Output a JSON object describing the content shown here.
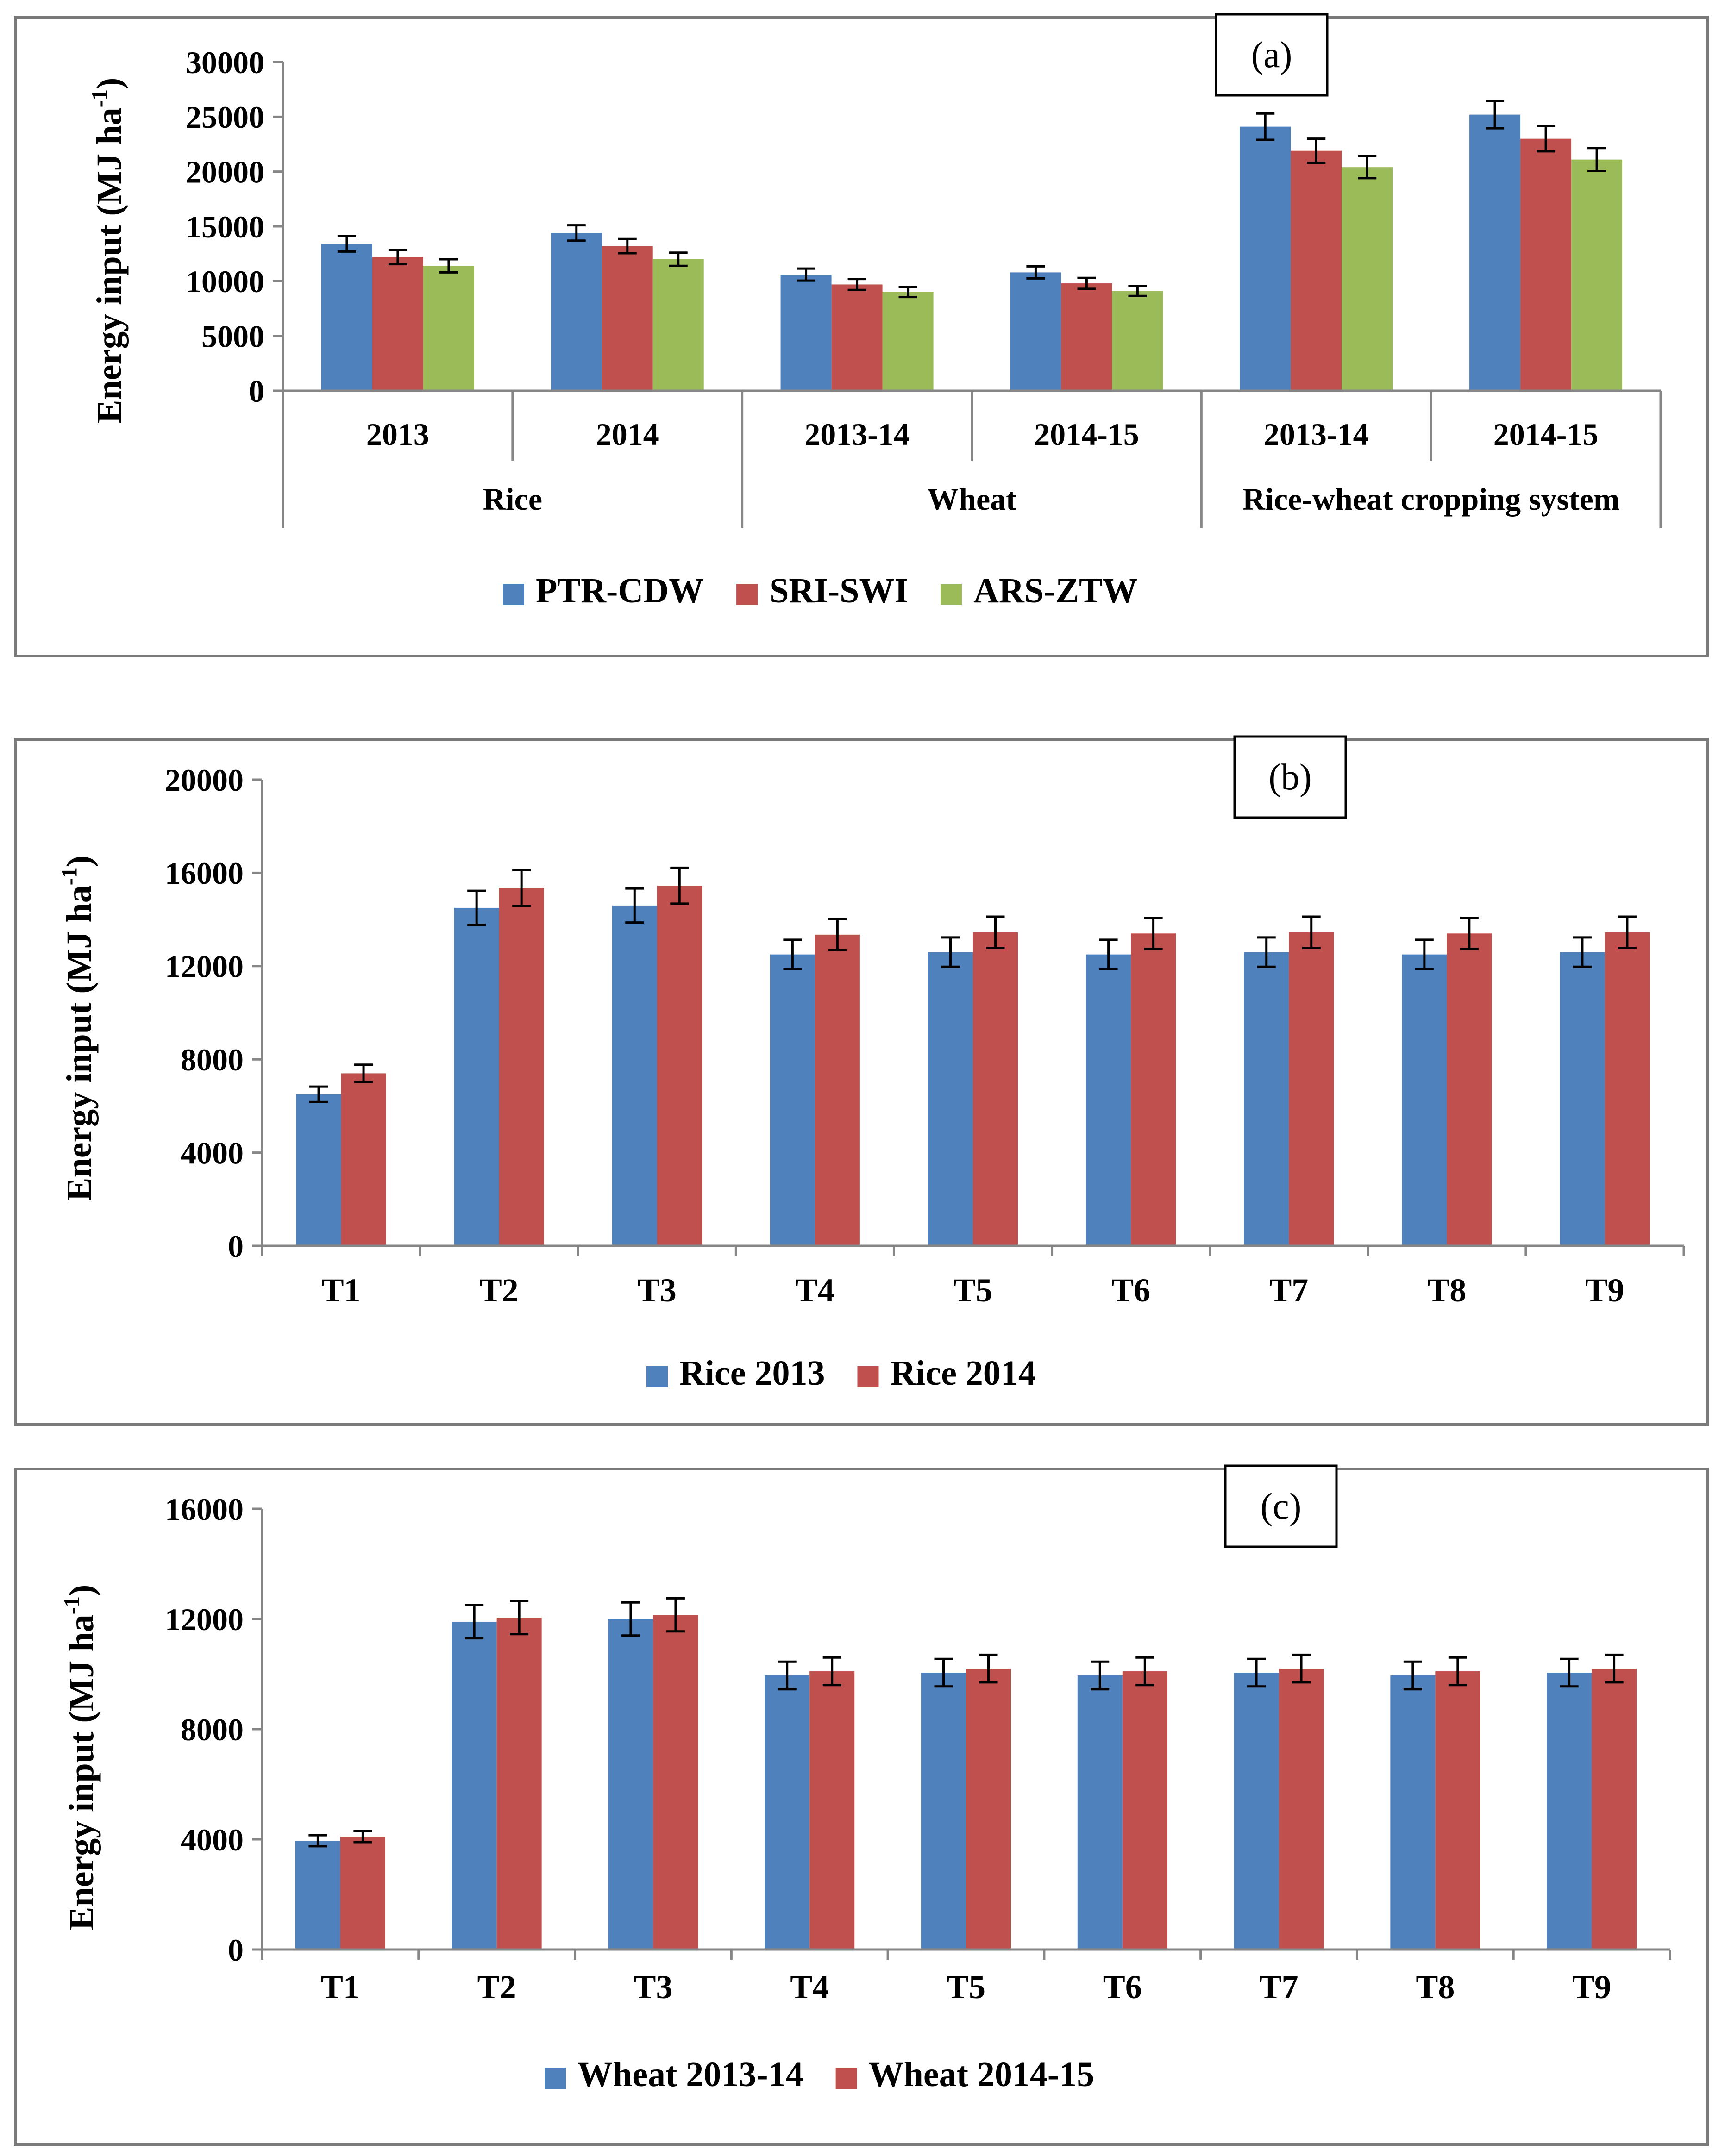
{
  "colors": {
    "blue": "#4f81bd",
    "red": "#c0504d",
    "green": "#9bbb59"
  },
  "chart_data": [
    {
      "id": "a",
      "type": "bar",
      "label": "(a)",
      "ylabel": "Energy input (MJ ha",
      "ylabel_sup": "-1",
      "ylabel_close": ")",
      "ylim": [
        0,
        30000
      ],
      "yticks": [
        "0",
        "5000",
        "10000",
        "15000",
        "20000",
        "25000",
        "30000"
      ],
      "categories": [
        "2013",
        "2014",
        "2013-14",
        "2014-15",
        "2013-14",
        "2014-15"
      ],
      "groups": [
        "Rice",
        "Wheat",
        "Rice-wheat cropping system"
      ],
      "series": [
        {
          "name": "PTR-CDW",
          "color": "#4f81bd",
          "values": [
            13400,
            14400,
            10600,
            10800,
            24100,
            25200
          ],
          "errors": [
            700,
            700,
            550,
            550,
            1200,
            1250
          ]
        },
        {
          "name": "SRI-SWI",
          "color": "#c0504d",
          "values": [
            12200,
            13200,
            9700,
            9800,
            21900,
            23000
          ],
          "errors": [
            650,
            650,
            500,
            500,
            1100,
            1150
          ]
        },
        {
          "name": "ARS-ZTW",
          "color": "#9bbb59",
          "values": [
            11400,
            12000,
            9000,
            9100,
            20400,
            21100
          ],
          "errors": [
            600,
            600,
            450,
            450,
            1000,
            1050
          ]
        }
      ]
    },
    {
      "id": "b",
      "type": "bar",
      "label": "(b)",
      "ylabel": "Energy input (MJ ha",
      "ylabel_sup": "-1",
      "ylabel_close": ")",
      "ylim": [
        0,
        20000
      ],
      "yticks": [
        "0",
        "4000",
        "8000",
        "12000",
        "16000",
        "20000"
      ],
      "categories": [
        "T1",
        "T2",
        "T3",
        "T4",
        "T5",
        "T6",
        "T7",
        "T8",
        "T9"
      ],
      "series": [
        {
          "name": "Rice 2013",
          "color": "#4f81bd",
          "values": [
            6500,
            14500,
            14600,
            12500,
            12600,
            12500,
            12600,
            12500,
            12600
          ],
          "errors": [
            330,
            730,
            730,
            630,
            630,
            630,
            630,
            630,
            630
          ]
        },
        {
          "name": "Rice 2014",
          "color": "#c0504d",
          "values": [
            7400,
            15350,
            15450,
            13350,
            13450,
            13400,
            13450,
            13400,
            13450
          ],
          "errors": [
            370,
            770,
            770,
            670,
            670,
            670,
            670,
            670,
            670
          ]
        }
      ]
    },
    {
      "id": "c",
      "type": "bar",
      "label": "(c)",
      "ylabel": "Energy input (MJ ha",
      "ylabel_sup": "-1",
      "ylabel_close": ")",
      "ylim": [
        0,
        16000
      ],
      "yticks": [
        "0",
        "4000",
        "8000",
        "12000",
        "16000"
      ],
      "categories": [
        "T1",
        "T2",
        "T3",
        "T4",
        "T5",
        "T6",
        "T7",
        "T8",
        "T9"
      ],
      "series": [
        {
          "name": "Wheat 2013-14",
          "color": "#4f81bd",
          "values": [
            3950,
            11900,
            12000,
            9950,
            10050,
            9950,
            10050,
            9950,
            10050
          ],
          "errors": [
            200,
            600,
            600,
            500,
            500,
            500,
            500,
            500,
            500
          ]
        },
        {
          "name": "Wheat 2014-15",
          "color": "#c0504d",
          "values": [
            4100,
            12050,
            12150,
            10100,
            10200,
            10100,
            10200,
            10100,
            10200
          ],
          "errors": [
            200,
            600,
            600,
            500,
            500,
            500,
            500,
            500,
            500
          ]
        }
      ]
    }
  ]
}
